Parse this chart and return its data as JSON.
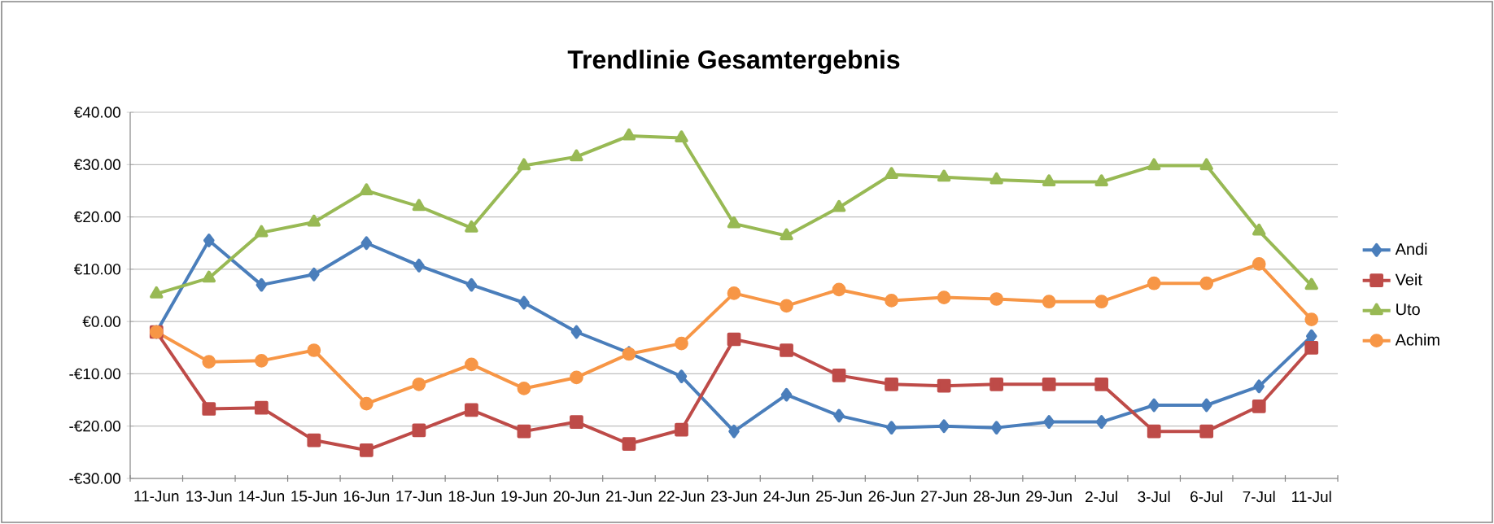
{
  "chart_data": {
    "type": "line",
    "title": "Trendlinie Gesamtergebnis",
    "categories": [
      "11-Jun",
      "13-Jun",
      "14-Jun",
      "15-Jun",
      "16-Jun",
      "17-Jun",
      "18-Jun",
      "19-Jun",
      "20-Jun",
      "21-Jun",
      "22-Jun",
      "23-Jun",
      "24-Jun",
      "25-Jun",
      "26-Jun",
      "27-Jun",
      "28-Jun",
      "29-Jun",
      "2-Jul",
      "3-Jul",
      "6-Jul",
      "7-Jul",
      "11-Jul"
    ],
    "series": [
      {
        "name": "Andi",
        "color": "#4a7ebb",
        "marker": "diamond",
        "values": [
          -2,
          15.5,
          7,
          9,
          15,
          10.7,
          7,
          3.6,
          -2,
          -6,
          -10.5,
          -21,
          -14,
          -18,
          -20.3,
          -20,
          -20.3,
          -19.2,
          -19.2,
          -16,
          -16,
          -12.4,
          -2.8
        ]
      },
      {
        "name": "Veit",
        "color": "#be4b48",
        "marker": "square",
        "values": [
          -2,
          -16.7,
          -16.5,
          -22.7,
          -24.6,
          -20.8,
          -16.9,
          -21,
          -19.2,
          -23.4,
          -20.7,
          -3.4,
          -5.5,
          -10.3,
          -12,
          -12.3,
          -12,
          -12,
          -12,
          -21,
          -21,
          -16.2,
          -5
        ]
      },
      {
        "name": "Uto",
        "color": "#98b954",
        "marker": "triangle",
        "values": [
          5.3,
          8.3,
          17,
          19,
          25,
          22,
          17.9,
          29.8,
          31.5,
          35.5,
          35.1,
          18.7,
          16.4,
          21.8,
          28.1,
          27.6,
          27.1,
          26.7,
          26.7,
          29.8,
          29.8,
          17.3,
          6.9
        ]
      },
      {
        "name": "Achim",
        "color": "#f79646",
        "marker": "circle",
        "values": [
          -2,
          -7.7,
          -7.5,
          -5.5,
          -15.7,
          -12,
          -8.2,
          -12.8,
          -10.7,
          -6.2,
          -4.2,
          5.4,
          3,
          6.1,
          4,
          4.6,
          4.3,
          3.8,
          3.8,
          7.3,
          7.3,
          11,
          0.4
        ]
      }
    ],
    "ylim": [
      -30,
      40
    ],
    "yticks": [
      {
        "value": -30,
        "label": "-€30.00"
      },
      {
        "value": -20,
        "label": "-€20.00"
      },
      {
        "value": -10,
        "label": "-€10.00"
      },
      {
        "value": 0,
        "label": "€0.00"
      },
      {
        "value": 10,
        "label": "€10.00"
      },
      {
        "value": 20,
        "label": "€20.00"
      },
      {
        "value": 30,
        "label": "€30.00"
      },
      {
        "value": 40,
        "label": "€40.00"
      }
    ],
    "grid": "y",
    "legend": "right",
    "line_style": "solid"
  }
}
